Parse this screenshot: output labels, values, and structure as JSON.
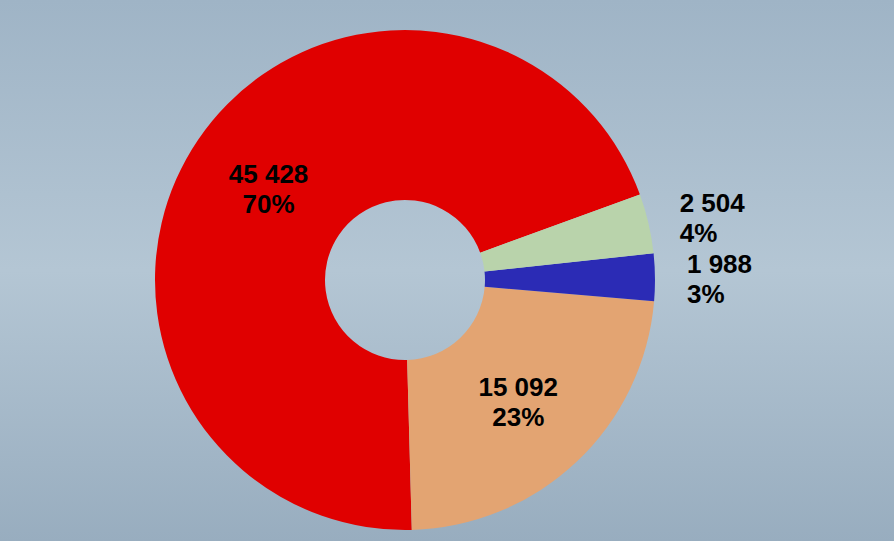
{
  "chart_data": {
    "type": "pie",
    "values": [
      45428,
      15092,
      1988,
      2504
    ],
    "value_labels": [
      "45 428",
      "15 092",
      "1 988",
      "2 504"
    ],
    "shares": [
      70,
      23,
      3,
      4
    ],
    "share_labels": [
      "70%",
      "23%",
      "3%",
      "4%"
    ],
    "colors": [
      "#e00000",
      "#e3a472",
      "#2b2bb5",
      "#b9d3ab"
    ],
    "data_labels": true
  }
}
